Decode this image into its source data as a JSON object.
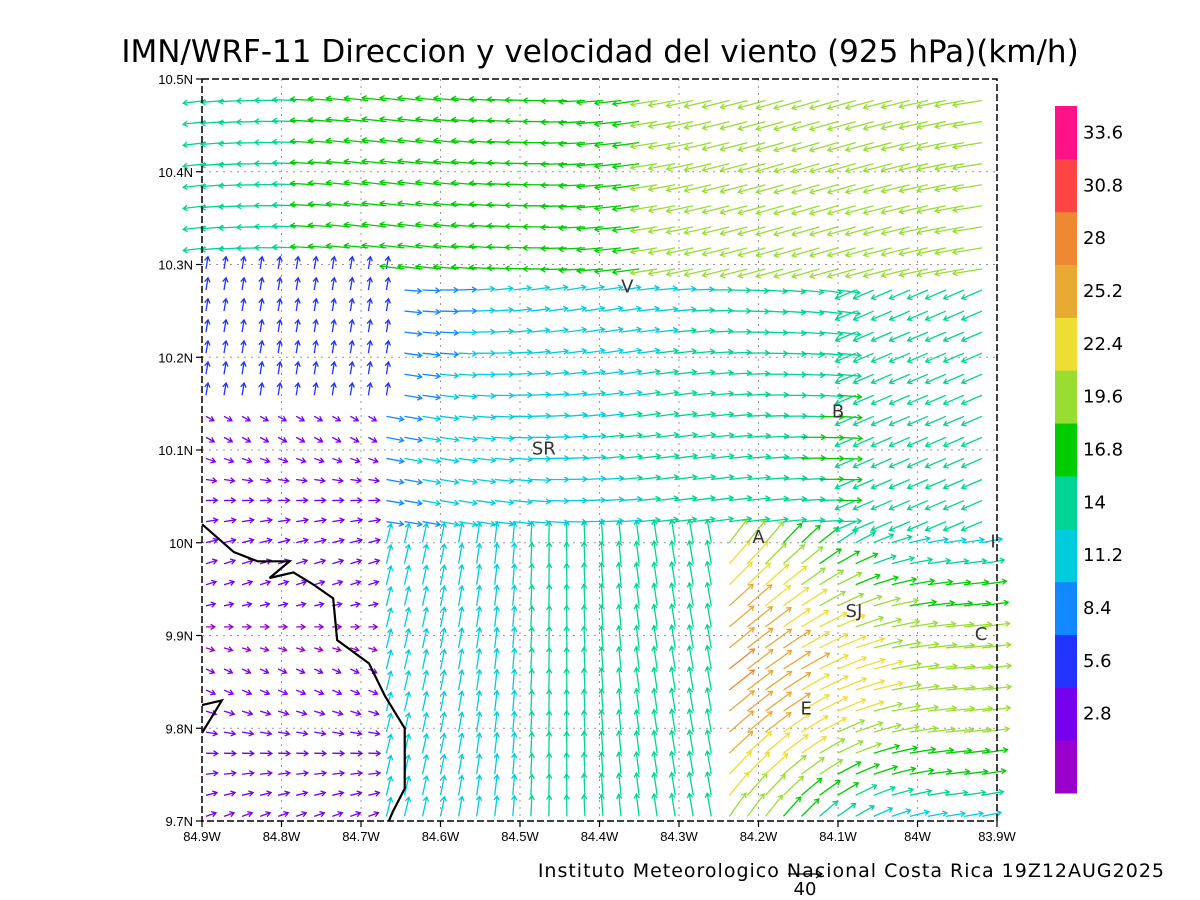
{
  "chart_data": {
    "type": "vector field (wind barbs/arrows)",
    "title": "IMN/WRF-11 Direccion y velocidad del viento (925 hPa)(km/h)",
    "footer": "Instituto Meteorologico Nacional Costa Rica 19Z12AUG2025",
    "reference_vector_label": "40",
    "x_range": [
      -84.9,
      -83.9
    ],
    "y_range": [
      9.7,
      10.5
    ],
    "x_ticks": [
      {
        "value": -84.9,
        "label": "84.9W"
      },
      {
        "value": -84.8,
        "label": "84.8W"
      },
      {
        "value": -84.7,
        "label": "84.7W"
      },
      {
        "value": -84.6,
        "label": "84.6W"
      },
      {
        "value": -84.5,
        "label": "84.5W"
      },
      {
        "value": -84.4,
        "label": "84.4W"
      },
      {
        "value": -84.3,
        "label": "84.3W"
      },
      {
        "value": -84.2,
        "label": "84.2W"
      },
      {
        "value": -84.1,
        "label": "84.1W"
      },
      {
        "value": -84.0,
        "label": "84W"
      },
      {
        "value": -83.9,
        "label": "83.9W"
      }
    ],
    "y_ticks": [
      {
        "value": 10.5,
        "label": "10.5N"
      },
      {
        "value": 10.4,
        "label": "10.4N"
      },
      {
        "value": 10.3,
        "label": "10.3N"
      },
      {
        "value": 10.2,
        "label": "10.2N"
      },
      {
        "value": 10.1,
        "label": "10.1N"
      },
      {
        "value": 10.0,
        "label": "10N"
      },
      {
        "value": 9.9,
        "label": "9.9N"
      },
      {
        "value": 9.8,
        "label": "9.8N"
      },
      {
        "value": 9.7,
        "label": "9.7N"
      }
    ],
    "grid": true,
    "colorbar": {
      "colors": [
        "#9900cc",
        "#7700ee",
        "#2233ff",
        "#1188ff",
        "#00ccdd",
        "#00d494",
        "#00cc00",
        "#99dd33",
        "#eedd33",
        "#e8aa33",
        "#ee8833",
        "#ff4444",
        "#ff1188"
      ],
      "labels": [
        "2.8",
        "5.6",
        "8.4",
        "11.2",
        "14",
        "16.8",
        "19.6",
        "22.4",
        "25.2",
        "28",
        "30.8",
        "33.6"
      ]
    },
    "places": [
      {
        "label": "V",
        "lon": -84.365,
        "lat": 10.27
      },
      {
        "label": "SR",
        "lon": -84.47,
        "lat": 10.095
      },
      {
        "label": "B",
        "lon": -84.1,
        "lat": 10.135
      },
      {
        "label": "A",
        "lon": -84.2,
        "lat": 10.0
      },
      {
        "label": "SJ",
        "lon": -84.08,
        "lat": 9.92
      },
      {
        "label": "C",
        "lon": -83.92,
        "lat": 9.895
      },
      {
        "label": "E",
        "lon": -84.14,
        "lat": 9.815
      },
      {
        "label": "I",
        "lon": -83.905,
        "lat": 9.995
      }
    ],
    "coastline": [
      [
        -84.9,
        10.02
      ],
      [
        -84.86,
        9.99
      ],
      [
        -84.83,
        9.98
      ],
      [
        -84.79,
        9.98
      ],
      [
        -84.815,
        9.962
      ],
      [
        -84.785,
        9.968
      ],
      [
        -84.76,
        9.955
      ],
      [
        -84.735,
        9.94
      ],
      [
        -84.73,
        9.895
      ],
      [
        -84.69,
        9.87
      ],
      [
        -84.67,
        9.835
      ],
      [
        -84.645,
        9.8
      ],
      [
        -84.645,
        9.76
      ],
      [
        -84.645,
        9.735
      ],
      [
        -84.66,
        9.71
      ],
      [
        -84.665,
        9.7
      ]
    ],
    "coastline_island": [
      [
        -84.9,
        9.825
      ],
      [
        -84.875,
        9.83
      ],
      [
        -84.9,
        9.795
      ]
    ],
    "wind_field_description": "Easterly/southeasterly flow over the Caribbean slope; convergence zone near SR–A–SJ with stronger 20–30 km/h winds east and south of SJ; weak winds (<6 km/h) near the Pacific coast"
  }
}
